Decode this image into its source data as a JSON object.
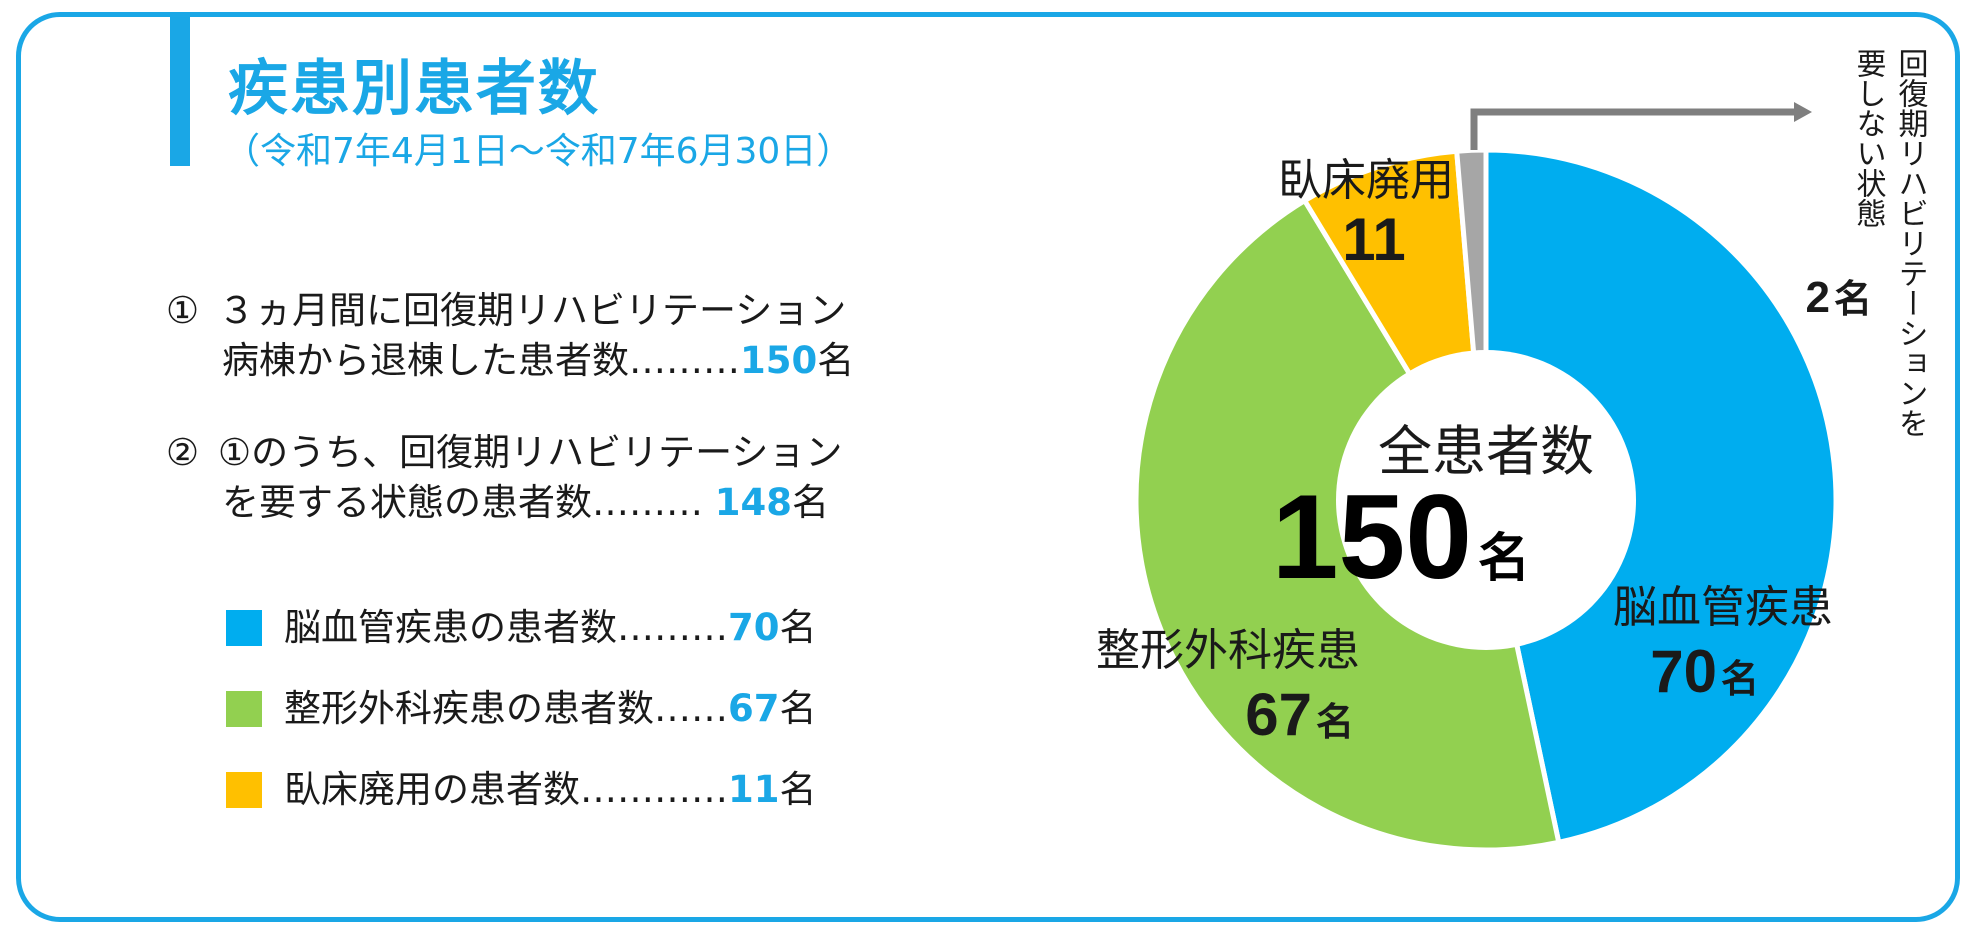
{
  "header": {
    "title": "疾患別患者数",
    "period": "（令和7年4月1日～令和7年6月30日）"
  },
  "statements": [
    {
      "marker": "①",
      "line1": "３ヵ月間に回復期リハビリテーション",
      "line2": "病棟から退棟した患者数………",
      "value": "150",
      "unit": "名"
    },
    {
      "marker": "②",
      "line1": "①のうち、回復期リハビリテーション",
      "line2": "を要する状態の患者数……… ",
      "value": "148",
      "unit": "名"
    }
  ],
  "legend": [
    {
      "text": "脳血管疾患の患者数………",
      "value": "70",
      "unit": "名",
      "color": "#00adef"
    },
    {
      "text": "整形外科疾患の患者数…… ",
      "value": "67",
      "unit": "名",
      "color": "#92d050"
    },
    {
      "text": "臥床廃用の患者数………… ",
      "value": "11",
      "unit": "名",
      "color": "#ffc000"
    }
  ],
  "chart_data": {
    "type": "pie",
    "style": "donut",
    "title": "全患者数",
    "total": 150,
    "total_unit": "名",
    "series": [
      {
        "name": "脳血管疾患",
        "value": 70,
        "unit": "名",
        "color": "#00adef"
      },
      {
        "name": "整形外科疾患",
        "value": 67,
        "unit": "名",
        "color": "#92d050"
      },
      {
        "name": "臥床廃用",
        "value": 11,
        "unit": "",
        "color": "#ffc000"
      },
      {
        "name": "回復期リハビリテーションを要しない状態",
        "value": 2,
        "unit": "名",
        "color": "#a6a6a6"
      }
    ],
    "callout": {
      "line1": "回復期リハビリテーションを",
      "line2": "要しない状態",
      "arrow_color": "#7f7f7f"
    }
  }
}
